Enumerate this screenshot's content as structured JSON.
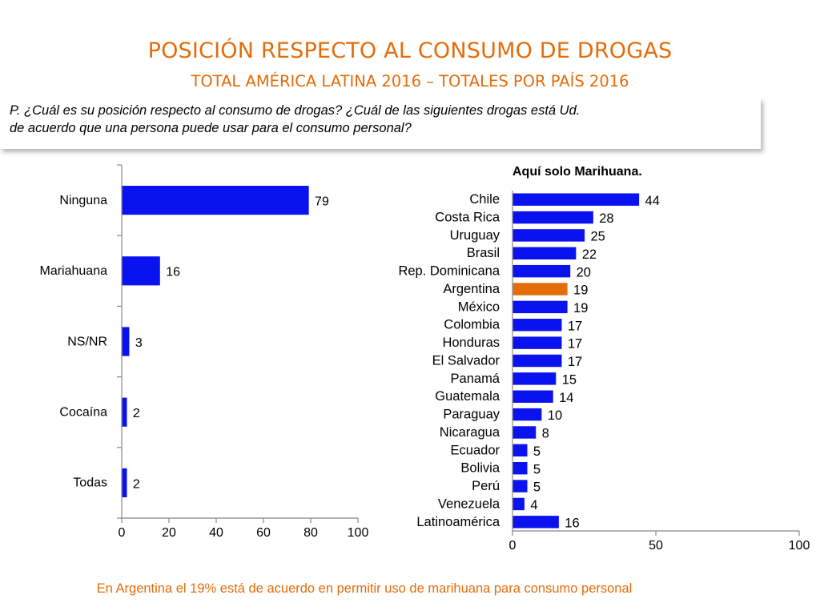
{
  "header": {
    "title": "POSICIÓN RESPECTO AL CONSUMO DE DROGAS",
    "subtitle": "TOTAL AMÉRICA LATINA 2016 – TOTALES POR PAÍS 2016"
  },
  "question": {
    "line1": "P. ¿Cuál es su posición respecto al consumo de drogas? ¿Cuál de las siguientes drogas está Ud.",
    "line2": "de acuerdo que una persona puede usar para el consumo personal?"
  },
  "footer": {
    "note": "En Argentina el 19% está de acuerdo en permitir uso de marihuana para consumo personal"
  },
  "colors": {
    "bar": "#0a12f0",
    "highlight": "#e46c0a",
    "accent": "#e46c0a",
    "axis": "#888888"
  },
  "chart_data": [
    {
      "type": "bar",
      "orientation": "horizontal",
      "title": "",
      "categories": [
        "Ninguna",
        "Mariahuana",
        "NS/NR",
        "Cocaína",
        "Todas"
      ],
      "values": [
        79,
        16,
        3,
        2,
        2
      ],
      "xlim": [
        0,
        100
      ],
      "xticks": [
        0,
        20,
        40,
        60,
        80,
        100
      ],
      "xlabel": "",
      "ylabel": "",
      "grid": false
    },
    {
      "type": "bar",
      "orientation": "horizontal",
      "title": "Aquí solo Marihuana.",
      "categories": [
        "Chile",
        "Costa Rica",
        "Uruguay",
        "Brasil",
        "Rep. Dominicana",
        "Argentina",
        "México",
        "Colombia",
        "Honduras",
        "El Salvador",
        "Panamá",
        "Guatemala",
        "Paraguay",
        "Nicaragua",
        "Ecuador",
        "Bolivia",
        "Perú",
        "Venezuela",
        "Latinoamérica"
      ],
      "values": [
        44,
        28,
        25,
        22,
        20,
        19,
        19,
        17,
        17,
        17,
        15,
        14,
        10,
        8,
        5,
        5,
        5,
        4,
        16
      ],
      "highlight": "Argentina",
      "xlim": [
        0,
        100
      ],
      "xticks": [
        0,
        50,
        100
      ],
      "xlabel": "",
      "ylabel": "",
      "grid": false
    }
  ]
}
